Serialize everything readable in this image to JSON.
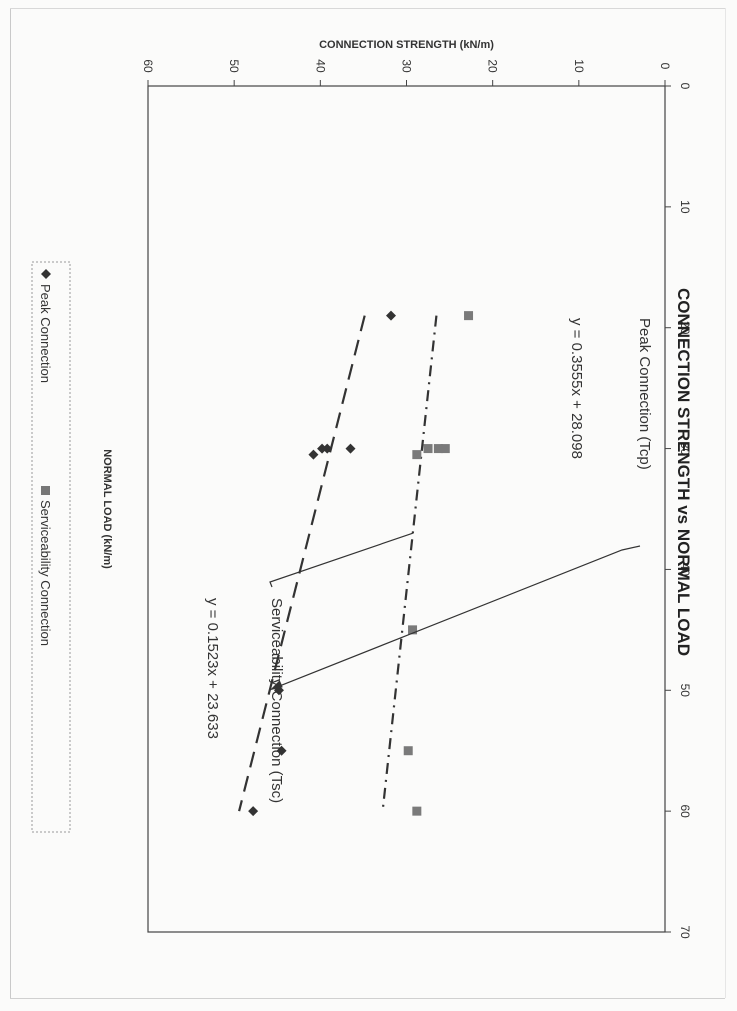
{
  "chart_data": {
    "type": "scatter",
    "title": "CONNECTION STRENGTH vs NORMAL LOAD",
    "xlabel": "NORMAL LOAD (kN/m)",
    "ylabel": "CONNECTION STRENGTH (kN/m)",
    "xlim": [
      0,
      70
    ],
    "ylim": [
      0,
      60
    ],
    "x_ticks": [
      "0",
      "10",
      "20",
      "30",
      "40",
      "50",
      "60",
      "70"
    ],
    "y_ticks": [
      "0",
      "10",
      "20",
      "30",
      "40",
      "50",
      "60"
    ],
    "grid": false,
    "series": [
      {
        "name": "Peak Connection",
        "marker": "diamond",
        "points": [
          [
            19,
            31.8
          ],
          [
            30,
            36.5
          ],
          [
            30,
            39.2
          ],
          [
            30,
            39.8
          ],
          [
            30.5,
            40.8
          ],
          [
            50,
            44.8
          ],
          [
            55,
            44.5
          ],
          [
            60,
            47.8
          ]
        ]
      },
      {
        "name": "Serviceability Connection",
        "marker": "square",
        "points": [
          [
            19,
            22.8
          ],
          [
            30,
            25.5
          ],
          [
            30,
            26.3
          ],
          [
            30,
            27.5
          ],
          [
            30.5,
            28.8
          ],
          [
            45,
            29.3
          ],
          [
            55,
            29.8
          ],
          [
            60,
            28.8
          ]
        ]
      }
    ],
    "trendlines": [
      {
        "series": "Peak Connection",
        "slope": 0.3555,
        "intercept": 28.098,
        "x_range": [
          19,
          60
        ],
        "style": "long-dash"
      },
      {
        "series": "Serviceability Connection",
        "slope": 0.1523,
        "intercept": 23.633,
        "x_range": [
          19,
          60
        ],
        "style": "dash-dot"
      }
    ],
    "annotations": [
      {
        "id": "peak",
        "label": "Peak Connection (Tcp)",
        "equation": "y = 0.3555x + 28.098"
      },
      {
        "id": "serv",
        "label": "Serviceability Connection (Tsc)",
        "equation": "y = 0.1523x + 23.633"
      }
    ],
    "legend": {
      "placement": "bottom",
      "entries": [
        "Peak Connection",
        "Serviceability Connection"
      ]
    },
    "orientation": "rotated 90° clockwise"
  }
}
